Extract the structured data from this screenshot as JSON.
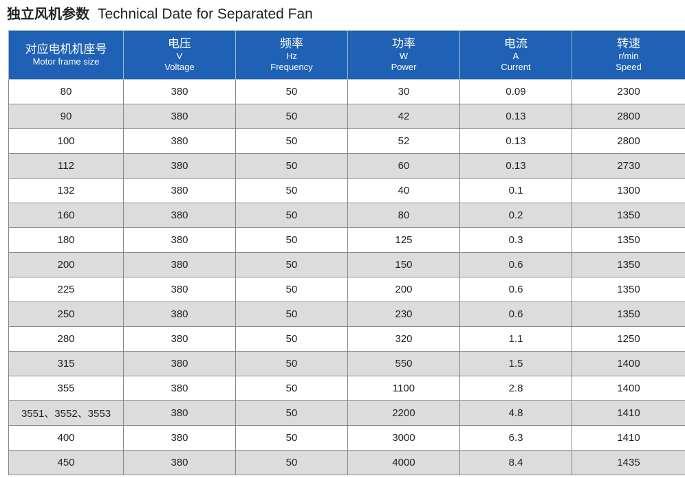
{
  "header": {
    "title_cn": "独立风机参数",
    "title_en": "Technical Date for Separated Fan"
  },
  "table": {
    "columns": [
      {
        "cn": "对应电机机座号",
        "en": "Motor frame size"
      },
      {
        "cn": "电压",
        "unit": "V",
        "en": "Voltage"
      },
      {
        "cn": "频率",
        "unit": "Hz",
        "en": "Frequency"
      },
      {
        "cn": "功率",
        "unit": "W",
        "en": "Power"
      },
      {
        "cn": "电流",
        "unit": "A",
        "en": "Current"
      },
      {
        "cn": "转速",
        "unit": "r/min",
        "en": "Speed"
      }
    ],
    "rows": [
      [
        80,
        380,
        50,
        30,
        0.09,
        2300
      ],
      [
        90,
        380,
        50,
        42,
        0.13,
        2800
      ],
      [
        100,
        380,
        50,
        52,
        0.13,
        2800
      ],
      [
        112,
        380,
        50,
        60,
        0.13,
        2730
      ],
      [
        132,
        380,
        50,
        40,
        0.1,
        1300
      ],
      [
        160,
        380,
        50,
        80,
        0.2,
        1350
      ],
      [
        180,
        380,
        50,
        125,
        0.3,
        1350
      ],
      [
        200,
        380,
        50,
        150,
        0.6,
        1350
      ],
      [
        225,
        380,
        50,
        200,
        0.6,
        1350
      ],
      [
        250,
        380,
        50,
        230,
        0.6,
        1350
      ],
      [
        280,
        380,
        50,
        320,
        1.1,
        1250
      ],
      [
        315,
        380,
        50,
        550,
        1.5,
        1400
      ],
      [
        355,
        380,
        50,
        1100,
        2.8,
        1400
      ],
      [
        "3551、3552、3553",
        380,
        50,
        2200,
        4.8,
        1410
      ],
      [
        400,
        380,
        50,
        3000,
        6.3,
        1410
      ],
      [
        450,
        380,
        50,
        4000,
        8.4,
        1435
      ]
    ]
  }
}
